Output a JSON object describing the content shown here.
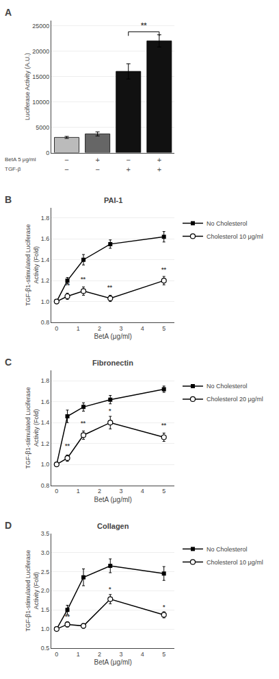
{
  "chart_data": [
    {
      "type": "bar",
      "label": "A",
      "ylabel": "Luciferase Activity (A.U.)",
      "categories": [
        [
          "−",
          "−"
        ],
        [
          "+",
          "−"
        ],
        [
          "−",
          "+"
        ],
        [
          "+",
          "+"
        ]
      ],
      "category_rows": [
        "BetA 5 μg/ml",
        "TGF-β"
      ],
      "values": [
        3000,
        3700,
        16000,
        22000
      ],
      "errors": [
        200,
        400,
        1500,
        1200
      ],
      "colors": [
        "#bbbbbb",
        "#666666",
        "#111111",
        "#111111"
      ],
      "ylim": [
        0,
        26000
      ],
      "yticks": [
        0,
        5000,
        10000,
        15000,
        20000,
        25000
      ],
      "grid": "y",
      "brackets": [
        {
          "from": 2,
          "to": 3,
          "y": 23800,
          "text": "**"
        }
      ]
    },
    {
      "type": "line",
      "label": "B",
      "title": "PAI-1",
      "xlabel": "BetA (μg/ml)",
      "ylabel": "TGF-β1-stimulated Luciferase\nActivity (Fold)",
      "x": [
        0,
        0.5,
        1.25,
        2.5,
        5
      ],
      "series": [
        {
          "name": "No Cholesterol",
          "color": "#000000",
          "marker": "square",
          "values": [
            1.0,
            1.2,
            1.4,
            1.55,
            1.62
          ],
          "errors": [
            0.02,
            0.03,
            0.05,
            0.04,
            0.05
          ]
        },
        {
          "name": "Cholesterol 10 μg/ml",
          "color": "#000000",
          "marker": "open circle",
          "values": [
            1.0,
            1.05,
            1.1,
            1.03,
            1.2
          ],
          "errors": [
            0.02,
            0.03,
            0.04,
            0.03,
            0.04
          ]
        }
      ],
      "xlim": [
        -0.25,
        5.5
      ],
      "xticks": [
        0,
        1,
        2,
        3,
        4,
        5
      ],
      "ylim": [
        0.8,
        1.9
      ],
      "yticks": [
        0.8,
        {
          "value": 1,
          "label": "1.0"
        },
        1.2,
        1.4,
        1.6,
        1.8
      ],
      "grid": "y",
      "legend": "right",
      "annotations": [
        {
          "x": 0.5,
          "y": 1.11,
          "text": "**"
        },
        {
          "x": 1.25,
          "y": 1.17,
          "text": "**"
        },
        {
          "x": 2.5,
          "y": 1.09,
          "text": "**"
        },
        {
          "x": 5,
          "y": 1.26,
          "text": "**"
        }
      ]
    },
    {
      "type": "line",
      "label": "C",
      "title": "Fibronectin",
      "xlabel": "BetA (μg/ml)",
      "ylabel": "TGF-β1-stimulated Luciferase\nActivity (Fold)",
      "x": [
        0,
        0.5,
        1.25,
        2.5,
        5
      ],
      "series": [
        {
          "name": "No Cholesterol",
          "color": "#000000",
          "marker": "square",
          "values": [
            1.0,
            1.46,
            1.55,
            1.62,
            1.72
          ],
          "errors": [
            0.02,
            0.06,
            0.04,
            0.04,
            0.03
          ]
        },
        {
          "name": "Cholesterol 20 μg/ml",
          "color": "#000000",
          "marker": "open circle",
          "values": [
            1.0,
            1.06,
            1.28,
            1.4,
            1.26
          ],
          "errors": [
            0.02,
            0.03,
            0.04,
            0.06,
            0.04
          ]
        }
      ],
      "xlim": [
        -0.25,
        5.5
      ],
      "xticks": [
        0,
        1,
        2,
        3,
        4,
        5
      ],
      "ylim": [
        0.8,
        1.9
      ],
      "yticks": [
        0.8,
        {
          "value": 1,
          "label": "1.0"
        },
        1.2,
        1.4,
        1.6,
        1.8
      ],
      "grid": "y",
      "legend": "right",
      "annotations": [
        {
          "x": 0.5,
          "y": 1.13,
          "text": "**"
        },
        {
          "x": 1.25,
          "y": 1.35,
          "text": "**"
        },
        {
          "x": 2.5,
          "y": 1.47,
          "text": "*"
        },
        {
          "x": 5,
          "y": 1.33,
          "text": "**"
        }
      ]
    },
    {
      "type": "line",
      "label": "D",
      "title": "Collagen",
      "xlabel": "BetA (μg/ml)",
      "ylabel": "TGF-β1-stimulated Luciferase\nActivity (Fold)",
      "x": [
        0,
        0.5,
        1.25,
        2.5,
        5
      ],
      "series": [
        {
          "name": "No Cholesterol",
          "color": "#000000",
          "marker": "square",
          "values": [
            1.0,
            1.5,
            2.35,
            2.65,
            2.45
          ],
          "errors": [
            0.05,
            0.12,
            0.22,
            0.18,
            0.18
          ]
        },
        {
          "name": "Cholesterol 10 μg/ml",
          "color": "#000000",
          "marker": "open circle",
          "values": [
            1.0,
            1.12,
            1.08,
            1.78,
            1.37
          ],
          "errors": [
            0.04,
            0.07,
            0.06,
            0.12,
            0.08
          ]
        }
      ],
      "xlim": [
        -0.25,
        5.5
      ],
      "xticks": [
        0,
        1,
        2,
        3,
        4,
        5
      ],
      "ylim": [
        0.5,
        3.5
      ],
      "yticks": [
        0.5,
        {
          "value": 1,
          "label": "1.0"
        },
        1.5,
        {
          "value": 2,
          "label": "2.0"
        },
        2.5,
        {
          "value": 3,
          "label": "3.0"
        },
        3.5
      ],
      "grid": "y",
      "legend": "right",
      "annotations": [
        {
          "x": 0.5,
          "y": 1.19,
          "text": "**"
        },
        {
          "x": 2.5,
          "y": 1.91,
          "text": "*"
        },
        {
          "x": 5,
          "y": 1.45,
          "text": "*"
        }
      ]
    }
  ]
}
